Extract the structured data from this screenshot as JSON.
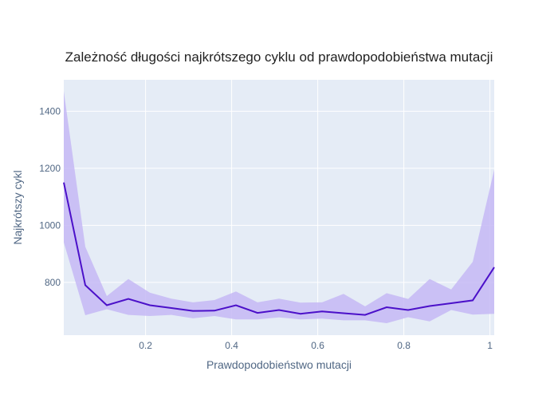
{
  "chart_data": {
    "type": "line",
    "title": "Zależność długości najkrótszego cyklu od prawdopodobieństwa mutacji",
    "xlabel": "Prawdopodobieństwo mutacji",
    "ylabel": "Najkrótszy cykl",
    "xlim": [
      0.01,
      1.01
    ],
    "ylim": [
      615,
      1510
    ],
    "x_ticks": [
      0.2,
      0.4,
      0.6,
      0.8,
      1
    ],
    "x_tick_labels": [
      "0.2",
      "0.4",
      "0.6",
      "0.8",
      "1"
    ],
    "y_ticks": [
      800,
      1000,
      1200,
      1400
    ],
    "y_tick_labels": [
      "800",
      "1000",
      "1200",
      "1400"
    ],
    "grid": true,
    "colors": {
      "plot_bg": "#e5ecf6",
      "grid": "#ffffff",
      "line": "#4b10c9",
      "band": "#c5b8f5"
    },
    "series": [
      {
        "x": [
          0.01,
          0.06,
          0.11,
          0.16,
          0.21,
          0.26,
          0.31,
          0.36,
          0.41,
          0.46,
          0.51,
          0.56,
          0.61,
          0.66,
          0.71,
          0.76,
          0.81,
          0.86,
          0.91,
          0.96,
          1.01
        ],
        "values": [
          1150,
          790,
          720,
          742,
          720,
          710,
          700,
          701,
          720,
          693,
          703,
          690,
          698,
          692,
          686,
          713,
          703,
          717,
          727,
          737,
          853
        ],
        "upper": [
          1470,
          925,
          752,
          812,
          764,
          743,
          730,
          738,
          768,
          730,
          743,
          729,
          730,
          760,
          716,
          762,
          742,
          812,
          775,
          872,
          1195
        ],
        "lower": [
          940,
          685,
          706,
          686,
          682,
          686,
          674,
          682,
          670,
          670,
          677,
          670,
          673,
          667,
          667,
          657,
          678,
          663,
          703,
          687,
          690
        ]
      }
    ]
  }
}
